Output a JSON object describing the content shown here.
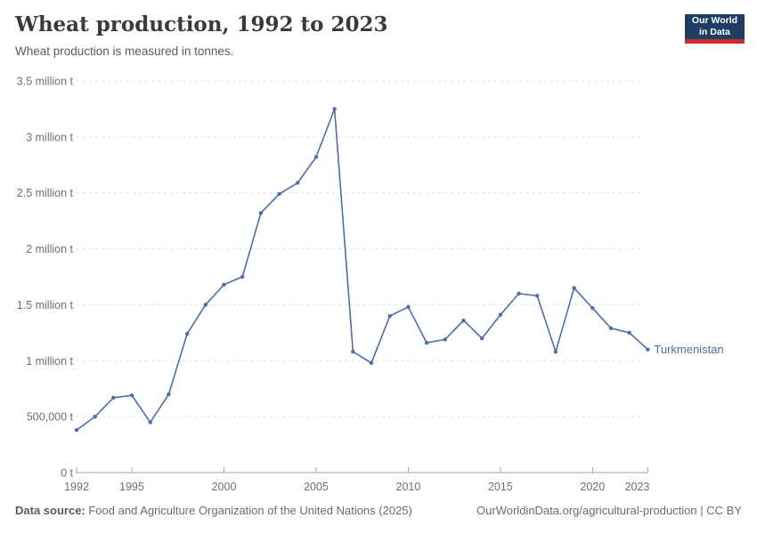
{
  "header": {
    "title": "Wheat production, 1992 to 2023",
    "subtitle": "Wheat production is measured in tonnes.",
    "logo": {
      "line1": "Our World",
      "line2": "in Data",
      "bg_color": "#1d3d63",
      "accent_color": "#cb2d26"
    }
  },
  "chart_data": {
    "type": "line",
    "title": "Wheat production, 1992 to 2023",
    "ylabel": "",
    "xlabel": "",
    "unit": "tonnes",
    "grid": "horizontal-dashed",
    "legend": "end-of-line-label",
    "ylim": [
      0,
      3500000
    ],
    "x": [
      1992,
      1993,
      1994,
      1995,
      1996,
      1997,
      1998,
      1999,
      2000,
      2001,
      2002,
      2003,
      2004,
      2005,
      2006,
      2007,
      2008,
      2009,
      2010,
      2011,
      2012,
      2013,
      2014,
      2015,
      2016,
      2017,
      2018,
      2019,
      2020,
      2021,
      2022,
      2023
    ],
    "series": [
      {
        "name": "Turkmenistan",
        "values": [
          380000,
          500000,
          670000,
          690000,
          450000,
          700000,
          1240000,
          1500000,
          1680000,
          1750000,
          2320000,
          2490000,
          2590000,
          2820000,
          3250000,
          1080000,
          980000,
          1400000,
          1480000,
          1160000,
          1190000,
          1360000,
          1200000,
          1410000,
          1600000,
          1580000,
          1080000,
          1650000,
          1470000,
          1290000,
          1250000,
          1100000
        ]
      }
    ],
    "xticks": [
      1992,
      1995,
      2000,
      2005,
      2010,
      2015,
      2020,
      2023
    ],
    "yticks": [
      {
        "value": 0,
        "label": "0 t"
      },
      {
        "value": 500000,
        "label": "500,000 t"
      },
      {
        "value": 1000000,
        "label": "1 million t"
      },
      {
        "value": 1500000,
        "label": "1.5 million t"
      },
      {
        "value": 2000000,
        "label": "2 million t"
      },
      {
        "value": 2500000,
        "label": "2.5 million t"
      },
      {
        "value": 3000000,
        "label": "3 million t"
      },
      {
        "value": 3500000,
        "label": "3.5 million t"
      }
    ],
    "colors": {
      "line": "#4d6ea8",
      "grid": "#dedede",
      "axis": "#a3a3a3",
      "tick_label": "#6e6e6e"
    }
  },
  "footer": {
    "source_label": "Data source:",
    "source_text": " Food and Agriculture Organization of the United Nations (2025)",
    "link": "OurWorldinData.org/agricultural-production",
    "separator": " | ",
    "license": "CC BY"
  }
}
